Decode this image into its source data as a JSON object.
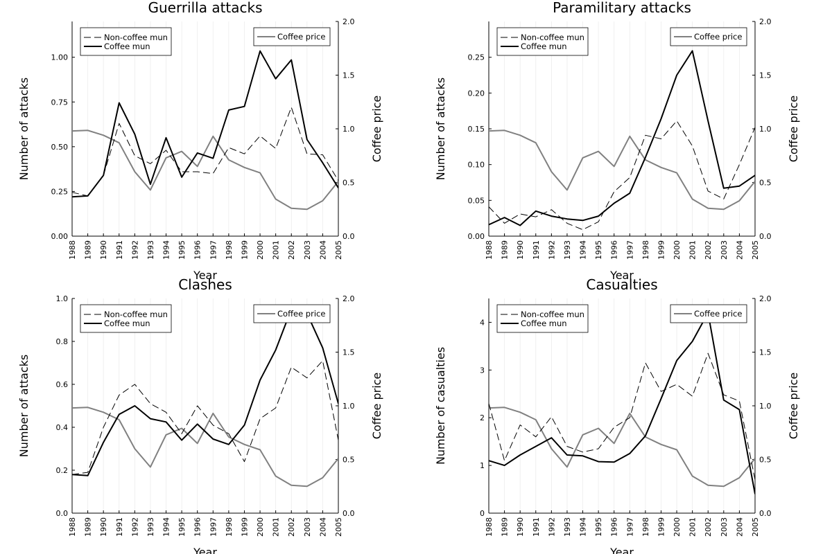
{
  "years": [
    "1988",
    "1989",
    "1990",
    "1991",
    "1992",
    "1993",
    "1994",
    "1995",
    "1996",
    "1997",
    "1998",
    "1999",
    "2000",
    "2001",
    "2002",
    "2003",
    "2004",
    "2005"
  ],
  "legend": {
    "noncoffee": "Non-coffee mun",
    "coffee": "Coffee mun",
    "price": "Coffee price"
  },
  "colors": {
    "noncoffee": "#000000",
    "coffee": "#000000",
    "price": "#808080"
  },
  "coffee_price": [
    0.98,
    0.985,
    0.94,
    0.87,
    0.6,
    0.43,
    0.73,
    0.79,
    0.65,
    0.93,
    0.71,
    0.64,
    0.59,
    0.345,
    0.26,
    0.25,
    0.33,
    0.51
  ],
  "chart_data": [
    {
      "type": "line",
      "title": "Guerrilla attacks",
      "xlabel": "Year",
      "ylabel": "Number of attacks",
      "y2label": "Coffee price",
      "ylim": [
        0,
        1.2
      ],
      "yticks": [
        0,
        0.25,
        0.5,
        0.75,
        1.0
      ],
      "yticklabels": [
        "0.00",
        "0.25",
        "0.50",
        "0.75",
        "1.00"
      ],
      "y2lim": [
        0,
        2
      ],
      "y2ticks": [
        0,
        0.5,
        1,
        1.5,
        2
      ],
      "y2ticklabels": [
        "0.0",
        "0.5",
        "1.0",
        "1.5",
        "2.0"
      ],
      "grid": "vertical",
      "legend_left": "top-left",
      "legend_right": "top-right",
      "series": [
        {
          "name": "Non-coffee mun",
          "values": [
            0.245,
            0.225,
            0.34,
            0.63,
            0.45,
            0.405,
            0.48,
            0.36,
            0.36,
            0.35,
            0.495,
            0.46,
            0.56,
            0.49,
            0.72,
            0.46,
            0.455,
            0.31
          ]
        },
        {
          "name": "Coffee mun",
          "values": [
            0.22,
            0.225,
            0.34,
            0.745,
            0.57,
            0.29,
            0.55,
            0.33,
            0.465,
            0.435,
            0.705,
            0.725,
            1.035,
            0.88,
            0.985,
            0.54,
            0.41,
            0.27
          ]
        },
        {
          "name": "Coffee price",
          "axis": "right",
          "values": [
            0.98,
            0.985,
            0.94,
            0.87,
            0.6,
            0.43,
            0.73,
            0.79,
            0.65,
            0.93,
            0.71,
            0.64,
            0.59,
            0.345,
            0.26,
            0.25,
            0.33,
            0.51
          ]
        }
      ]
    },
    {
      "type": "line",
      "title": "Paramilitary attacks",
      "xlabel": "Year",
      "ylabel": "Number of attacks",
      "y2label": "Coffee price",
      "ylim": [
        0,
        0.3
      ],
      "yticks": [
        0,
        0.05,
        0.1,
        0.15,
        0.2,
        0.25
      ],
      "yticklabels": [
        "0.00",
        "0.05",
        "0.10",
        "0.15",
        "0.20",
        "0.25"
      ],
      "y2lim": [
        0,
        2
      ],
      "y2ticks": [
        0,
        0.5,
        1,
        1.5,
        2
      ],
      "y2ticklabels": [
        "0.0",
        "0.5",
        "1.0",
        "1.5",
        "2.0"
      ],
      "grid": "vertical",
      "legend_left": "top-left",
      "legend_right": "top-right",
      "series": [
        {
          "name": "Non-coffee mun",
          "values": [
            0.041,
            0.018,
            0.031,
            0.027,
            0.037,
            0.018,
            0.009,
            0.02,
            0.062,
            0.082,
            0.141,
            0.136,
            0.161,
            0.126,
            0.063,
            0.052,
            0.1,
            0.152
          ]
        },
        {
          "name": "Coffee mun",
          "values": [
            0.016,
            0.026,
            0.015,
            0.035,
            0.028,
            0.024,
            0.022,
            0.028,
            0.046,
            0.06,
            0.11,
            0.164,
            0.225,
            0.259,
            0.161,
            0.067,
            0.07,
            0.085
          ]
        },
        {
          "name": "Coffee price",
          "axis": "right",
          "values": [
            0.98,
            0.985,
            0.94,
            0.87,
            0.6,
            0.43,
            0.73,
            0.79,
            0.65,
            0.93,
            0.71,
            0.64,
            0.59,
            0.345,
            0.26,
            0.25,
            0.33,
            0.51
          ]
        }
      ]
    },
    {
      "type": "line",
      "title": "Clashes",
      "xlabel": "Year",
      "ylabel": "Number of attacks",
      "y2label": "Coffee price",
      "ylim": [
        0,
        1.0
      ],
      "yticks": [
        0,
        0.2,
        0.4,
        0.6,
        0.8,
        1.0
      ],
      "yticklabels": [
        "0.0",
        "0.2",
        "0.4",
        "0.6",
        "0.8",
        "1.0"
      ],
      "y2lim": [
        0,
        2
      ],
      "y2ticks": [
        0,
        0.5,
        1,
        1.5,
        2
      ],
      "y2ticklabels": [
        "0.0",
        "0.5",
        "1.0",
        "1.5",
        "2.0"
      ],
      "grid": "vertical",
      "legend_left": "top-left",
      "legend_right": "top-right",
      "series": [
        {
          "name": "Non-coffee mun",
          "values": [
            0.18,
            0.19,
            0.4,
            0.55,
            0.6,
            0.51,
            0.47,
            0.37,
            0.5,
            0.41,
            0.37,
            0.24,
            0.44,
            0.49,
            0.68,
            0.63,
            0.71,
            0.34
          ]
        },
        {
          "name": "Coffee mun",
          "values": [
            0.18,
            0.175,
            0.33,
            0.46,
            0.5,
            0.44,
            0.425,
            0.34,
            0.415,
            0.345,
            0.32,
            0.41,
            0.62,
            0.76,
            0.95,
            0.93,
            0.77,
            0.51
          ]
        },
        {
          "name": "Coffee price",
          "axis": "right",
          "values": [
            0.98,
            0.985,
            0.94,
            0.87,
            0.6,
            0.43,
            0.73,
            0.79,
            0.65,
            0.93,
            0.71,
            0.64,
            0.59,
            0.345,
            0.26,
            0.25,
            0.33,
            0.51
          ]
        }
      ]
    },
    {
      "type": "line",
      "title": "Casualties",
      "xlabel": "Year",
      "ylabel": "Number of casualties",
      "y2label": "Coffee price",
      "ylim": [
        0,
        4.5
      ],
      "yticks": [
        0,
        1,
        2,
        3,
        4
      ],
      "yticklabels": [
        "0",
        "1",
        "2",
        "3",
        "4"
      ],
      "y2lim": [
        0,
        2
      ],
      "y2ticks": [
        0,
        0.5,
        1,
        1.5,
        2
      ],
      "y2ticklabels": [
        "0.0",
        "0.5",
        "1.0",
        "1.5",
        "2.0"
      ],
      "grid": "vertical",
      "legend_left": "top-left",
      "legend_right": "top-right",
      "series": [
        {
          "name": "Non-coffee mun",
          "values": [
            2.3,
            1.1,
            1.85,
            1.6,
            2.02,
            1.4,
            1.28,
            1.35,
            1.8,
            2.0,
            3.15,
            2.55,
            2.7,
            2.45,
            3.35,
            2.48,
            2.35,
            0.7
          ]
        },
        {
          "name": "Coffee mun",
          "values": [
            1.1,
            1.0,
            1.22,
            1.4,
            1.58,
            1.22,
            1.2,
            1.08,
            1.07,
            1.25,
            1.62,
            2.4,
            3.2,
            3.6,
            4.2,
            2.37,
            2.17,
            0.4
          ]
        },
        {
          "name": "Coffee price",
          "axis": "right",
          "values": [
            0.98,
            0.985,
            0.94,
            0.87,
            0.6,
            0.43,
            0.73,
            0.79,
            0.65,
            0.93,
            0.71,
            0.64,
            0.59,
            0.345,
            0.26,
            0.25,
            0.33,
            0.51
          ]
        }
      ]
    }
  ]
}
